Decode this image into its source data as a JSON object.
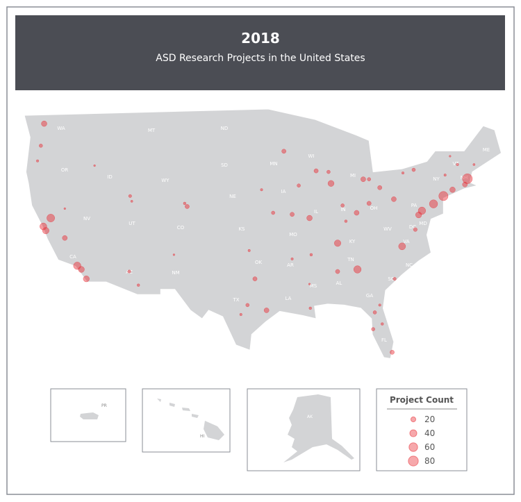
{
  "header": {
    "title": "2018",
    "subtitle": "ASD Research Projects in the United States"
  },
  "state_labels": [
    "WA",
    "OR",
    "CA",
    "NV",
    "ID",
    "MT",
    "WY",
    "UT",
    "CO",
    "AZ",
    "NM",
    "ND",
    "SD",
    "NE",
    "KS",
    "OK",
    "TX",
    "MN",
    "IA",
    "MO",
    "AR",
    "LA",
    "WI",
    "IL",
    "MI",
    "IN",
    "OH",
    "KY",
    "TN",
    "MS",
    "AL",
    "GA",
    "FL",
    "SC",
    "NC",
    "VA",
    "WV",
    "PA",
    "NY",
    "VT",
    "NH",
    "ME",
    "RI",
    "NJ",
    "DE",
    "MD",
    "DC"
  ],
  "inset_labels": [
    "PR",
    "HI",
    "AK"
  ],
  "points": {
    "lon": [
      -122.3,
      -122.7,
      -123.1,
      -116.2,
      -122.4,
      -122.1,
      -121.5,
      -119.8,
      -118.3,
      -117.8,
      -117.2,
      -119.8,
      -111.9,
      -111.7,
      -105.0,
      -105.3,
      -112.0,
      -110.9,
      -106.6,
      -96.8,
      -95.4,
      -97.7,
      -98.5,
      -97.5,
      -94.6,
      -90.2,
      -93.3,
      -89.4,
      -87.9,
      -87.6,
      -91.5,
      -96.0,
      -83.7,
      -83.0,
      -86.2,
      -83.0,
      -84.5,
      -81.7,
      -80.0,
      -86.8,
      -84.4,
      -79.0,
      -79.9,
      -77.4,
      -76.6,
      -77.0,
      -75.2,
      -74.0,
      -72.9,
      -71.1,
      -71.4,
      -77.6,
      -78.9,
      -73.8,
      -73.2,
      -72.3,
      -70.3,
      -80.2,
      -82.5,
      -82.3,
      -81.7,
      -81.4,
      -86.8,
      -90.1,
      -90.2,
      -92.3,
      -90.0,
      -85.8,
      -92.3
    ],
    "lat": [
      47.6,
      45.5,
      44.05,
      43.6,
      37.8,
      37.4,
      38.6,
      36.7,
      34.05,
      33.7,
      32.8,
      39.5,
      40.7,
      40.2,
      39.7,
      40.0,
      33.5,
      32.2,
      35.1,
      32.8,
      29.8,
      30.3,
      29.4,
      35.5,
      39.1,
      38.6,
      44.97,
      43.1,
      43.0,
      41.9,
      41.7,
      41.3,
      42.3,
      42.3,
      39.8,
      40.0,
      39.1,
      41.5,
      40.4,
      36.2,
      33.7,
      35.9,
      32.8,
      37.5,
      39.3,
      38.9,
      39.95,
      40.7,
      41.3,
      42.35,
      41.8,
      43.2,
      42.9,
      42.7,
      44.5,
      43.7,
      43.7,
      25.8,
      28.0,
      29.6,
      30.3,
      28.5,
      33.5,
      30.0,
      32.3,
      34.7,
      35.1,
      38.3,
      38.95
    ],
    "count": [
      25,
      10,
      5,
      3,
      40,
      35,
      50,
      20,
      45,
      30,
      30,
      3,
      8,
      4,
      15,
      6,
      8,
      6,
      3,
      15,
      20,
      10,
      5,
      5,
      10,
      25,
      15,
      15,
      10,
      30,
      10,
      5,
      20,
      10,
      10,
      15,
      20,
      15,
      20,
      35,
      45,
      40,
      8,
      12,
      45,
      30,
      55,
      70,
      25,
      80,
      20,
      10,
      5,
      5,
      3,
      5,
      4,
      15,
      10,
      10,
      5,
      6,
      15,
      6,
      3,
      5,
      6,
      6,
      15
    ]
  },
  "legend": {
    "title": "Project Count",
    "values": [
      20,
      40,
      60,
      80
    ]
  }
}
